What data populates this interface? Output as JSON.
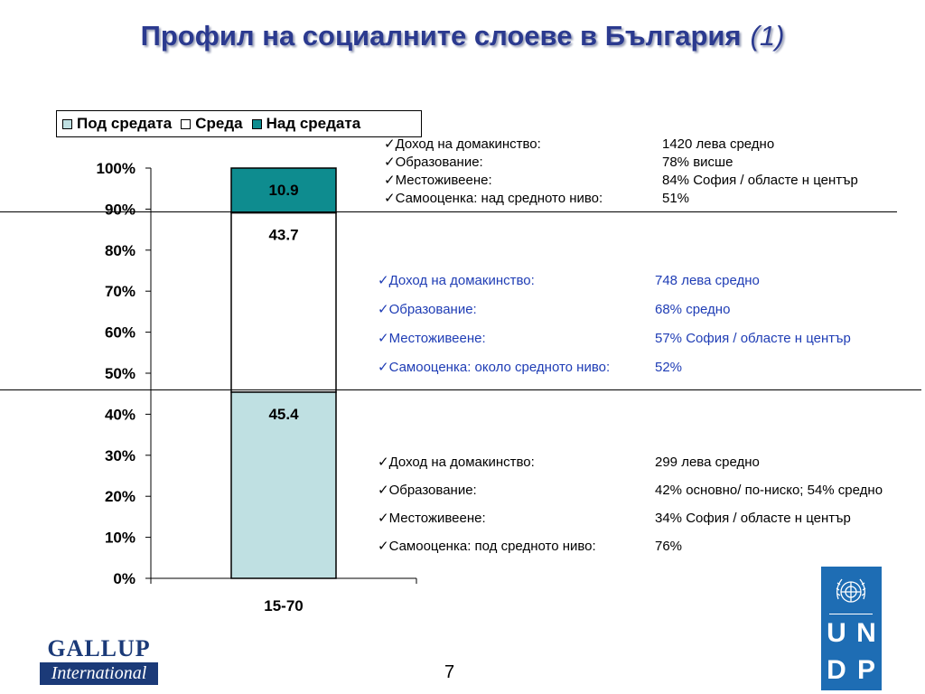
{
  "title": {
    "main": "Профил на социалните слоеве в България",
    "suffix": "(1)"
  },
  "legend": [
    {
      "label": "Под средата",
      "color": "#bfe0e2"
    },
    {
      "label": "Среда",
      "color": "#ffffff"
    },
    {
      "label": "Над средата",
      "color": "#0e8c8f"
    }
  ],
  "chart_data": {
    "type": "bar",
    "stacked": true,
    "categories": [
      "15-70"
    ],
    "series": [
      {
        "name": "Под средата",
        "values": [
          45.4
        ],
        "color": "#bfe0e2"
      },
      {
        "name": "Среда",
        "values": [
          43.7
        ],
        "color": "#ffffff"
      },
      {
        "name": "Над средата",
        "values": [
          10.9
        ],
        "color": "#0e8c8f"
      }
    ],
    "ylim": [
      0,
      100
    ],
    "yticks": [
      "0%",
      "10%",
      "20%",
      "30%",
      "40%",
      "50%",
      "60%",
      "70%",
      "80%",
      "90%",
      "100%"
    ],
    "legend_position": "top"
  },
  "profiles": {
    "upper": [
      {
        "label": "Доход на домакинство:",
        "value": "1420 лева средно"
      },
      {
        "label": "Образование:",
        "value": "78% висше"
      },
      {
        "label": "Местоживеене:",
        "value": "84% София / областе н център"
      },
      {
        "label": "Самооценка: над средното ниво:",
        "value": "51%"
      }
    ],
    "middle": [
      {
        "label": "Доход на домакинство:",
        "value": "748 лева средно"
      },
      {
        "label": "Образование:",
        "value": "68% средно"
      },
      {
        "label": "Местоживеене:",
        "value": "57% София / областе н център"
      },
      {
        "label": "Самооценка: около средното ниво:",
        "value": "52%"
      }
    ],
    "lower": [
      {
        "label": "Доход на домакинство:",
        "value": "299 лева средно"
      },
      {
        "label": "Образование:",
        "value": "42% основно/ по-ниско; 54% средно"
      },
      {
        "label": "Местоживеене:",
        "value": "34% София / областе н център"
      },
      {
        "label": "Самооценка: под средното ниво:",
        "value": "76%"
      }
    ]
  },
  "footer": {
    "gallup_top": "GALLUP",
    "gallup_bottom": "International",
    "page_number": "7",
    "undp_letters": [
      "U",
      "N",
      "D",
      "P"
    ]
  }
}
